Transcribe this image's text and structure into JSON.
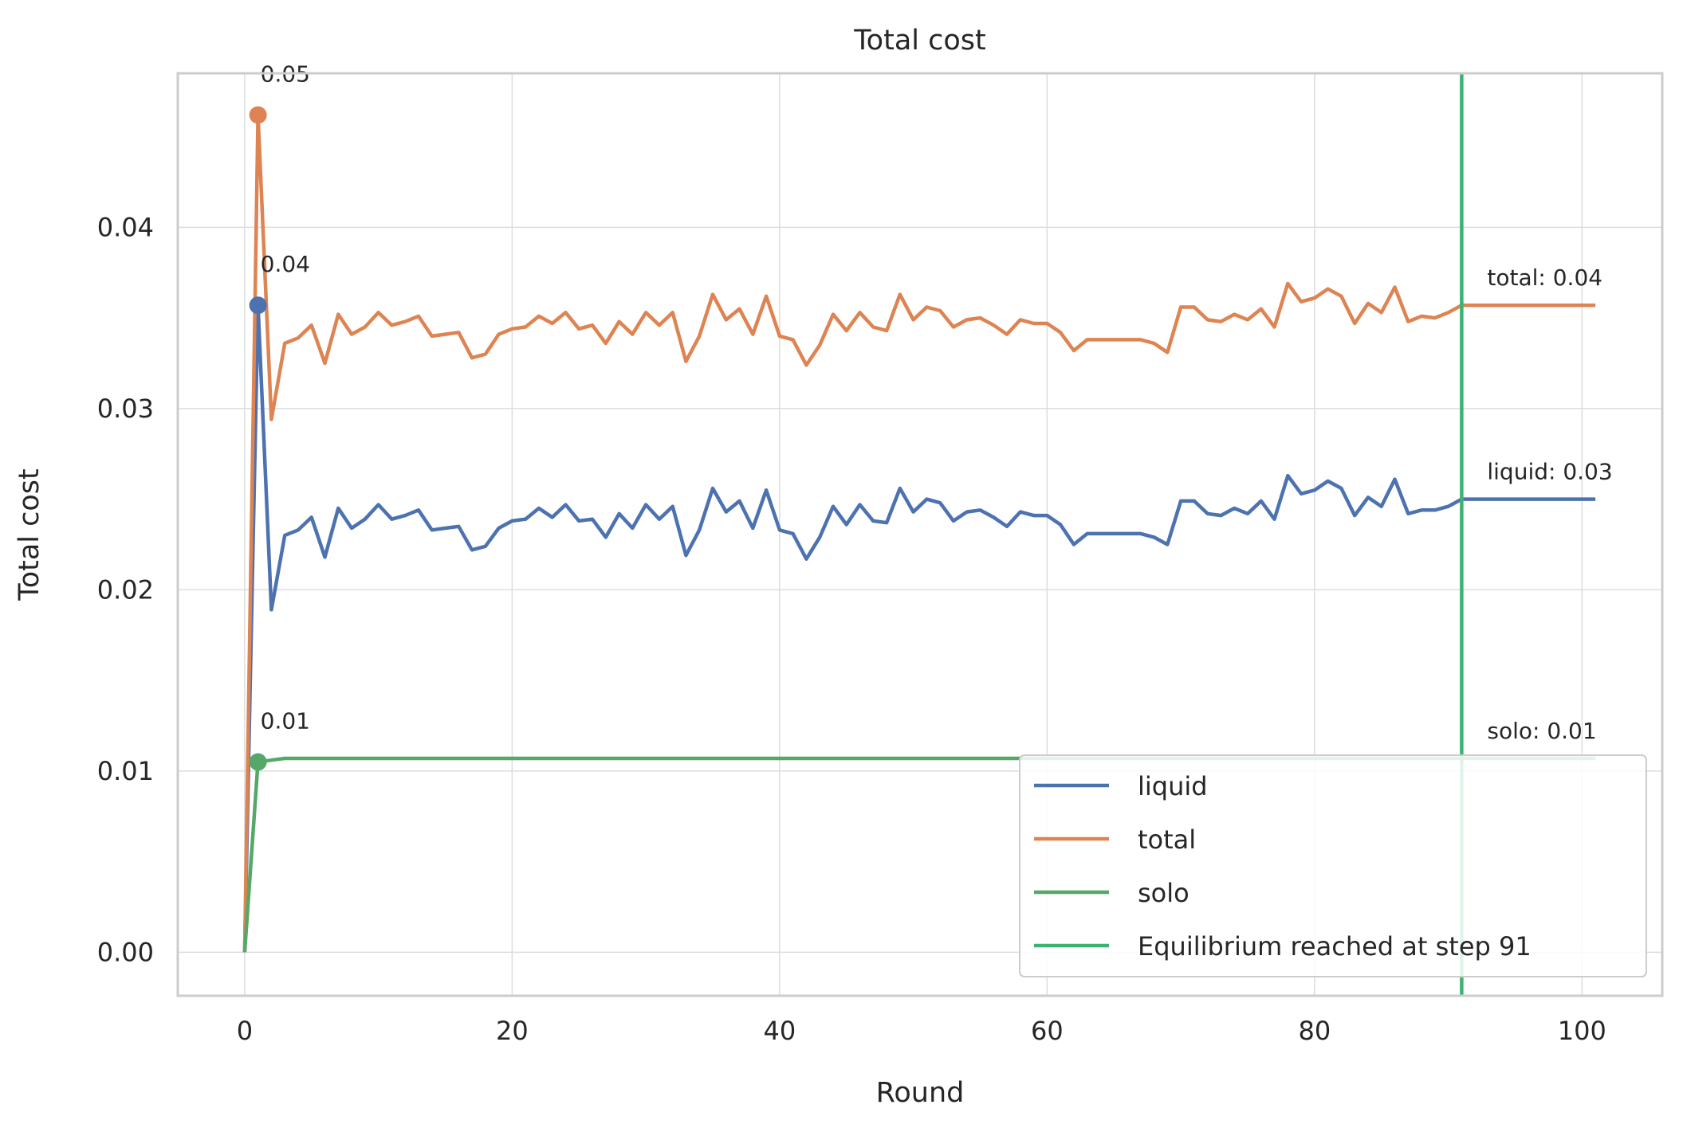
{
  "chart_data": {
    "type": "line",
    "title": "Total cost",
    "xlabel": "Round",
    "ylabel": "Total cost",
    "xlim": [
      -5,
      106
    ],
    "ylim": [
      -0.0024,
      0.0485
    ],
    "xticks": [
      0,
      20,
      40,
      60,
      80,
      100
    ],
    "xtick_labels": [
      "0",
      "20",
      "40",
      "60",
      "80",
      "100"
    ],
    "yticks": [
      0,
      0.01,
      0.02,
      0.03,
      0.04
    ],
    "ytick_labels": [
      "0.00",
      "0.01",
      "0.02",
      "0.03",
      "0.04"
    ],
    "grid": true,
    "legend_position": "lower right",
    "series": [
      {
        "name": "liquid",
        "color": "#4c72b0",
        "x": [
          0,
          1,
          2,
          3,
          4,
          5,
          6,
          7,
          8,
          9,
          10,
          11,
          12,
          13,
          14,
          15,
          16,
          17,
          18,
          19,
          20,
          21,
          22,
          23,
          24,
          25,
          26,
          27,
          28,
          29,
          30,
          31,
          32,
          33,
          34,
          35,
          36,
          37,
          38,
          39,
          40,
          41,
          42,
          43,
          44,
          45,
          46,
          47,
          48,
          49,
          50,
          51,
          52,
          53,
          54,
          55,
          56,
          57,
          58,
          59,
          60,
          61,
          62,
          63,
          64,
          65,
          66,
          67,
          68,
          69,
          70,
          71,
          72,
          73,
          74,
          75,
          76,
          77,
          78,
          79,
          80,
          81,
          82,
          83,
          84,
          85,
          86,
          87,
          88,
          89,
          90,
          91,
          92,
          93,
          94,
          95,
          96,
          97,
          98,
          99,
          100,
          101
        ],
        "y": [
          0.0,
          0.0357,
          0.0189,
          0.023,
          0.0233,
          0.024,
          0.0218,
          0.0245,
          0.0234,
          0.0239,
          0.0247,
          0.0239,
          0.0241,
          0.0244,
          0.0233,
          0.0234,
          0.0235,
          0.0222,
          0.0224,
          0.0234,
          0.0238,
          0.0239,
          0.0245,
          0.024,
          0.0247,
          0.0238,
          0.0239,
          0.0229,
          0.0242,
          0.0234,
          0.0247,
          0.0239,
          0.0246,
          0.0219,
          0.0233,
          0.0256,
          0.0243,
          0.0249,
          0.0234,
          0.0255,
          0.0233,
          0.0231,
          0.0217,
          0.0229,
          0.0246,
          0.0236,
          0.0247,
          0.0238,
          0.0237,
          0.0256,
          0.0243,
          0.025,
          0.0248,
          0.0238,
          0.0243,
          0.0244,
          0.024,
          0.0235,
          0.0243,
          0.0241,
          0.0241,
          0.0236,
          0.0225,
          0.0231,
          0.0231,
          0.0231,
          0.0231,
          0.0231,
          0.0229,
          0.0225,
          0.0249,
          0.0249,
          0.0242,
          0.0241,
          0.0245,
          0.0242,
          0.0249,
          0.0239,
          0.0263,
          0.0253,
          0.0255,
          0.026,
          0.0256,
          0.0241,
          0.0251,
          0.0246,
          0.0261,
          0.0242,
          0.0244,
          0.0244,
          0.0246,
          0.025,
          0.025,
          0.025,
          0.025,
          0.025,
          0.025,
          0.025,
          0.025,
          0.025,
          0.025,
          0.025
        ]
      },
      {
        "name": "total",
        "color": "#dd8452",
        "x": [
          0,
          1,
          2,
          3,
          4,
          5,
          6,
          7,
          8,
          9,
          10,
          11,
          12,
          13,
          14,
          15,
          16,
          17,
          18,
          19,
          20,
          21,
          22,
          23,
          24,
          25,
          26,
          27,
          28,
          29,
          30,
          31,
          32,
          33,
          34,
          35,
          36,
          37,
          38,
          39,
          40,
          41,
          42,
          43,
          44,
          45,
          46,
          47,
          48,
          49,
          50,
          51,
          52,
          53,
          54,
          55,
          56,
          57,
          58,
          59,
          60,
          61,
          62,
          63,
          64,
          65,
          66,
          67,
          68,
          69,
          70,
          71,
          72,
          73,
          74,
          75,
          76,
          77,
          78,
          79,
          80,
          81,
          82,
          83,
          84,
          85,
          86,
          87,
          88,
          89,
          90,
          91,
          92,
          93,
          94,
          95,
          96,
          97,
          98,
          99,
          100,
          101
        ],
        "y": [
          0.0,
          0.0462,
          0.0294,
          0.0336,
          0.0339,
          0.0346,
          0.0325,
          0.0352,
          0.0341,
          0.0345,
          0.0353,
          0.0346,
          0.0348,
          0.0351,
          0.034,
          0.0341,
          0.0342,
          0.0328,
          0.033,
          0.0341,
          0.0344,
          0.0345,
          0.0351,
          0.0347,
          0.0353,
          0.0344,
          0.0346,
          0.0336,
          0.0348,
          0.0341,
          0.0353,
          0.0346,
          0.0353,
          0.0326,
          0.034,
          0.0363,
          0.0349,
          0.0355,
          0.0341,
          0.0362,
          0.034,
          0.0338,
          0.0324,
          0.0335,
          0.0352,
          0.0343,
          0.0353,
          0.0345,
          0.0343,
          0.0363,
          0.0349,
          0.0356,
          0.0354,
          0.0345,
          0.0349,
          0.035,
          0.0346,
          0.0341,
          0.0349,
          0.0347,
          0.0347,
          0.0342,
          0.0332,
          0.0338,
          0.0338,
          0.0338,
          0.0338,
          0.0338,
          0.0336,
          0.0331,
          0.0356,
          0.0356,
          0.0349,
          0.0348,
          0.0352,
          0.0349,
          0.0355,
          0.0345,
          0.0369,
          0.0359,
          0.0361,
          0.0366,
          0.0362,
          0.0347,
          0.0358,
          0.0353,
          0.0367,
          0.0348,
          0.0351,
          0.035,
          0.0353,
          0.0357,
          0.0357,
          0.0357,
          0.0357,
          0.0357,
          0.0357,
          0.0357,
          0.0357,
          0.0357,
          0.0357,
          0.0357
        ]
      },
      {
        "name": "solo",
        "color": "#55a868",
        "x": [
          0,
          1,
          2,
          3,
          4,
          5,
          6,
          7,
          8,
          9,
          10,
          11,
          12,
          13,
          14,
          15,
          16,
          17,
          18,
          19,
          20,
          21,
          22,
          23,
          24,
          25,
          26,
          27,
          28,
          29,
          30,
          31,
          32,
          33,
          34,
          35,
          36,
          37,
          38,
          39,
          40,
          41,
          42,
          43,
          44,
          45,
          46,
          47,
          48,
          49,
          50,
          51,
          52,
          53,
          54,
          55,
          56,
          57,
          58,
          59,
          60,
          61,
          62,
          63,
          64,
          65,
          66,
          67,
          68,
          69,
          70,
          71,
          72,
          73,
          74,
          75,
          76,
          77,
          78,
          79,
          80,
          81,
          82,
          83,
          84,
          85,
          86,
          87,
          88,
          89,
          90,
          91,
          92,
          93,
          94,
          95,
          96,
          97,
          98,
          99,
          100,
          101
        ],
        "y": [
          0.0,
          0.0105,
          0.0106,
          0.0107,
          0.0107,
          0.0107,
          0.0107,
          0.0107,
          0.0107,
          0.0107,
          0.0107,
          0.0107,
          0.0107,
          0.0107,
          0.0107,
          0.0107,
          0.0107,
          0.0107,
          0.0107,
          0.0107,
          0.0107,
          0.0107,
          0.0107,
          0.0107,
          0.0107,
          0.0107,
          0.0107,
          0.0107,
          0.0107,
          0.0107,
          0.0107,
          0.0107,
          0.0107,
          0.0107,
          0.0107,
          0.0107,
          0.0107,
          0.0107,
          0.0107,
          0.0107,
          0.0107,
          0.0107,
          0.0107,
          0.0107,
          0.0107,
          0.0107,
          0.0107,
          0.0107,
          0.0107,
          0.0107,
          0.0107,
          0.0107,
          0.0107,
          0.0107,
          0.0107,
          0.0107,
          0.0107,
          0.0107,
          0.0107,
          0.0107,
          0.0107,
          0.0107,
          0.0107,
          0.0107,
          0.0107,
          0.0107,
          0.0107,
          0.0107,
          0.0107,
          0.0107,
          0.0107,
          0.0107,
          0.0107,
          0.0107,
          0.0107,
          0.0107,
          0.0107,
          0.0107,
          0.0107,
          0.0107,
          0.0107,
          0.0107,
          0.0107,
          0.0107,
          0.0107,
          0.0107,
          0.0107,
          0.0107,
          0.0107,
          0.0107,
          0.0107,
          0.0107,
          0.0107,
          0.0107,
          0.0107,
          0.0107,
          0.0107,
          0.0107,
          0.0107,
          0.0107,
          0.0107,
          0.0107
        ]
      }
    ],
    "markers": [
      {
        "x": 1,
        "y": 0.0357,
        "color": "#4c72b0",
        "label": "0.04"
      },
      {
        "x": 1,
        "y": 0.0462,
        "color": "#dd8452",
        "label": "0.05"
      },
      {
        "x": 1,
        "y": 0.0105,
        "color": "#55a868",
        "label": "0.01"
      }
    ],
    "end_labels": [
      {
        "x": 91,
        "y": 0.025,
        "text": "liquid: 0.03"
      },
      {
        "x": 91,
        "y": 0.0357,
        "text": "total: 0.04"
      },
      {
        "x": 91,
        "y": 0.0107,
        "text": "solo: 0.01"
      }
    ],
    "vline": {
      "x": 91,
      "color": "#3cb371",
      "label": "Equilibrium reached at step 91"
    },
    "legend": [
      {
        "label": "liquid",
        "color": "#4c72b0"
      },
      {
        "label": "total",
        "color": "#dd8452"
      },
      {
        "label": "solo",
        "color": "#55a868"
      },
      {
        "label": "Equilibrium reached at step 91",
        "color": "#3cb371"
      }
    ]
  }
}
